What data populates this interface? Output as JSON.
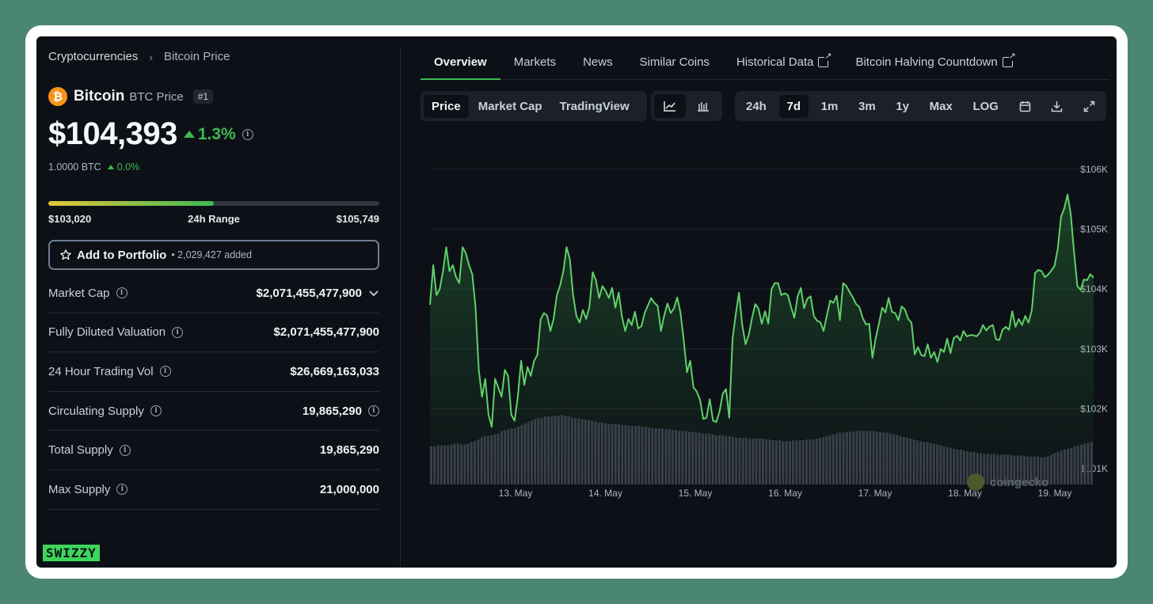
{
  "breadcrumb": {
    "root": "Cryptocurrencies",
    "current": "Bitcoin Price"
  },
  "coin": {
    "logo": "₿",
    "name": "Bitcoin",
    "symbol_label": "BTC Price",
    "rank": "#1"
  },
  "price": {
    "value": "$104,393",
    "change": "1.3%",
    "btc_value": "1.0000 BTC",
    "btc_change": "0.0%"
  },
  "range": {
    "low": "$103,020",
    "label": "24h Range",
    "high": "$105,749",
    "position": 0.5
  },
  "portfolio": {
    "label": "Add to Portfolio",
    "count": "• 2,029,427 added"
  },
  "stats": [
    {
      "label": "Market Cap",
      "value": "$2,071,455,477,900"
    },
    {
      "label": "Fully Diluted Valuation",
      "value": "$2,071,455,477,900"
    },
    {
      "label": "24 Hour Trading Vol",
      "value": "$26,669,163,033"
    },
    {
      "label": "Circulating Supply",
      "value": "19,865,290"
    },
    {
      "label": "Total Supply",
      "value": "19,865,290"
    },
    {
      "label": "Max Supply",
      "value": "21,000,000"
    }
  ],
  "brand_badge": "SWIZZY",
  "tabs": [
    "Overview",
    "Markets",
    "News",
    "Similar Coins",
    "Historical Data",
    "Bitcoin Halving Countdown"
  ],
  "toolbar": {
    "chart_types": [
      "Price",
      "Market Cap",
      "TradingView"
    ],
    "ranges": [
      "24h",
      "7d",
      "1m",
      "3m",
      "1y",
      "Max",
      "LOG"
    ]
  },
  "watermark": "coingecko",
  "colors": {
    "accent": "#3fb950",
    "background": "#0d1117",
    "frame": "#4b8770"
  },
  "chart_data": {
    "type": "area",
    "ylim": [
      101000,
      106000
    ],
    "y_ticks": [
      "$106K",
      "$105K",
      "$104K",
      "$103K",
      "$102K",
      "$101K"
    ],
    "x_ticks": [
      "13. May",
      "14. May",
      "15. May",
      "16. May",
      "17. May",
      "18. May",
      "19. May"
    ],
    "price_values": [
      103740,
      104400,
      103900,
      104000,
      104300,
      104700,
      104300,
      104400,
      104200,
      104100,
      104700,
      104600,
      104400,
      104250,
      103700,
      102650,
      102200,
      102500,
      101900,
      101700,
      102500,
      102350,
      102200,
      102650,
      102550,
      101900,
      101800,
      102200,
      102800,
      102400,
      102700,
      102550,
      102800,
      102900,
      103490,
      103600,
      103560,
      103300,
      103500,
      103900,
      104060,
      104300,
      104700,
      104500,
      103900,
      103550,
      103440,
      103650,
      103500,
      103700,
      104280,
      104150,
      103850,
      104050,
      103970,
      103850,
      104020,
      103690,
      103940,
      103540,
      103300,
      103500,
      103400,
      103620,
      103340,
      103380,
      103600,
      103730,
      103850,
      103770,
      103720,
      103300,
      103560,
      103760,
      103600,
      103680,
      103860,
      103610,
      103150,
      102610,
      102800,
      102360,
      102290,
      102150,
      101830,
      101850,
      102160,
      101800,
      101780,
      101950,
      102250,
      102330,
      101850,
      103160,
      103580,
      103940,
      103390,
      103080,
      103240,
      103520,
      103750,
      103670,
      103420,
      103630,
      103420,
      104000,
      104100,
      104100,
      103900,
      103930,
      103900,
      103700,
      103520,
      103880,
      104020,
      103680,
      103840,
      103880,
      103550,
      103470,
      103450,
      103300,
      103560,
      103810,
      103770,
      103890,
      103480,
      104100,
      104050,
      103950,
      103860,
      103750,
      103700,
      103520,
      103410,
      103420,
      102850,
      103180,
      103420,
      103690,
      103610,
      103850,
      103620,
      103600,
      103480,
      103710,
      103660,
      103500,
      103440,
      102910,
      103030,
      102900,
      102880,
      103080,
      102850,
      102950,
      102780,
      103000,
      102950,
      103170,
      102930,
      103180,
      103220,
      103140,
      103300,
      103210,
      103230,
      103230,
      103210,
      103270,
      103400,
      103310,
      103370,
      103400,
      103160,
      103150,
      103320,
      103370,
      103320,
      103630,
      103370,
      103500,
      103400,
      103550,
      103440,
      103650,
      104270,
      104320,
      104300,
      104200,
      104240,
      104310,
      104390,
      104680,
      105210,
      105350,
      105580,
      105250,
      104600,
      104050,
      103990,
      104160,
      104150,
      104250,
      104190
    ],
    "volume_values": [
      45,
      45,
      46,
      46,
      46,
      46,
      47,
      48,
      48,
      47,
      47,
      48,
      50,
      51,
      53,
      55,
      57,
      57,
      58,
      59,
      60,
      63,
      64,
      65,
      66,
      66,
      68,
      70,
      72,
      74,
      75,
      77,
      78,
      78,
      80,
      80,
      80,
      81,
      81,
      82,
      81,
      80,
      79,
      78,
      78,
      77,
      76,
      76,
      75,
      74,
      73,
      73,
      72,
      71,
      71,
      71,
      71,
      70,
      70,
      69,
      69,
      69,
      69,
      68,
      68,
      67,
      66,
      66,
      66,
      66,
      65,
      65,
      64,
      64,
      63,
      63,
      63,
      62,
      62,
      61,
      61,
      60,
      60,
      60,
      59,
      58,
      58,
      58,
      57,
      57,
      56,
      55,
      55,
      55,
      55,
      54,
      54,
      54,
      54,
      54,
      53,
      53,
      52,
      52,
      52,
      51,
      51,
      51,
      52,
      52,
      52,
      52,
      53,
      53,
      53,
      54,
      55,
      56,
      57,
      58,
      59,
      60,
      61,
      61,
      62,
      62,
      62,
      63,
      63,
      63,
      63,
      63,
      63,
      62,
      62,
      61,
      61,
      60,
      59,
      58,
      57,
      56,
      55,
      54,
      53,
      52,
      51,
      50,
      50,
      49,
      48,
      47,
      46,
      45,
      44,
      43,
      42,
      41,
      41,
      40,
      39,
      38,
      38,
      37,
      37,
      36,
      36,
      36,
      36,
      35,
      35,
      35,
      35,
      35,
      34,
      34,
      34,
      34,
      33,
      33,
      33,
      33,
      32,
      32,
      33,
      35,
      37,
      38,
      40,
      41,
      42,
      43,
      45,
      46,
      47,
      48,
      49,
      50
    ]
  }
}
